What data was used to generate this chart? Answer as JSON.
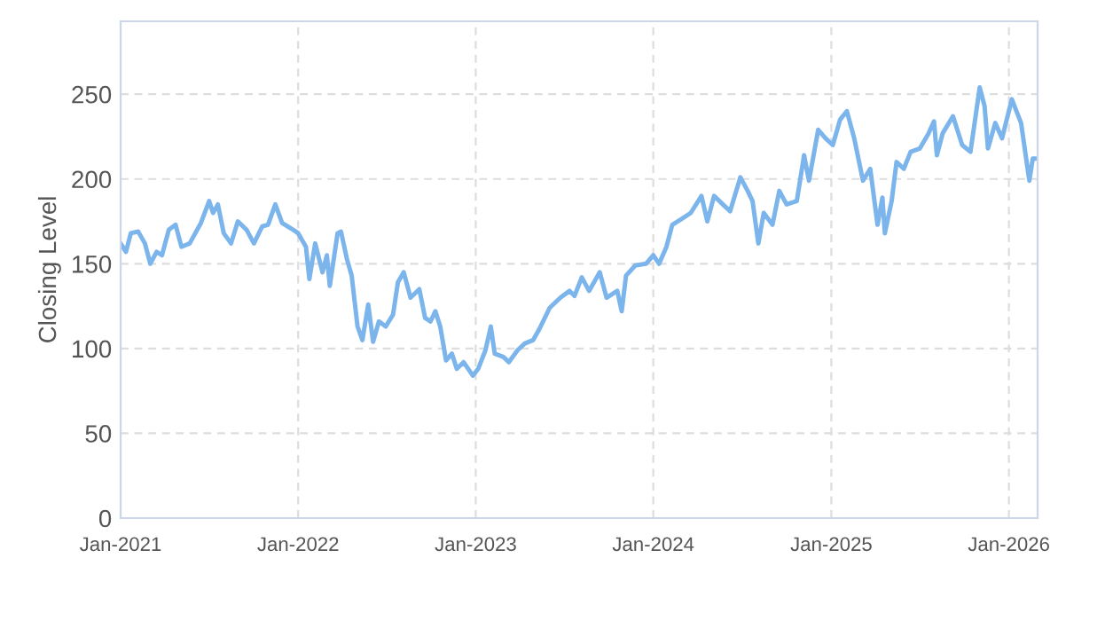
{
  "chart_data": {
    "type": "line",
    "ylabel": "Closing Level",
    "xlim": [
      "2021-01-01",
      "2026-03-01"
    ],
    "ylim": [
      0,
      293
    ],
    "xticks": [
      {
        "value": "2021-01-01",
        "label": "Jan-2021"
      },
      {
        "value": "2022-01-01",
        "label": "Jan-2022"
      },
      {
        "value": "2023-01-01",
        "label": "Jan-2023"
      },
      {
        "value": "2024-01-01",
        "label": "Jan-2024"
      },
      {
        "value": "2025-01-01",
        "label": "Jan-2025"
      },
      {
        "value": "2026-01-01",
        "label": "Jan-2026"
      }
    ],
    "yticks": [
      0,
      50,
      100,
      150,
      200,
      250
    ],
    "grid": true,
    "marker": "none",
    "line_style": "solid",
    "series": [
      {
        "color": "#7cb5ec",
        "x": [
          "2021-01-01",
          "2021-01-12",
          "2021-01-22",
          "2021-02-06",
          "2021-02-20",
          "2021-03-03",
          "2021-03-16",
          "2021-03-27",
          "2021-04-10",
          "2021-04-24",
          "2021-05-06",
          "2021-05-23",
          "2021-06-15",
          "2021-07-02",
          "2021-07-10",
          "2021-07-20",
          "2021-08-01",
          "2021-08-16",
          "2021-08-30",
          "2021-09-17",
          "2021-10-02",
          "2021-10-19",
          "2021-10-31",
          "2021-11-15",
          "2021-11-29",
          "2021-12-22",
          "2022-01-01",
          "2022-01-17",
          "2022-01-24",
          "2022-02-05",
          "2022-02-20",
          "2022-03-01",
          "2022-03-07",
          "2022-03-23",
          "2022-03-30",
          "2022-04-11",
          "2022-04-21",
          "2022-05-03",
          "2022-05-13",
          "2022-05-25",
          "2022-06-04",
          "2022-06-16",
          "2022-06-30",
          "2022-07-15",
          "2022-07-25",
          "2022-08-06",
          "2022-08-20",
          "2022-09-07",
          "2022-09-19",
          "2022-09-30",
          "2022-10-10",
          "2022-10-20",
          "2022-11-01",
          "2022-11-13",
          "2022-11-23",
          "2022-12-07",
          "2022-12-26",
          "2023-01-06",
          "2023-01-21",
          "2023-02-01",
          "2023-02-09",
          "2023-02-27",
          "2023-03-10",
          "2023-03-28",
          "2023-04-12",
          "2023-04-29",
          "2023-05-11",
          "2023-06-02",
          "2023-06-24",
          "2023-07-13",
          "2023-07-23",
          "2023-08-07",
          "2023-08-22",
          "2023-09-13",
          "2023-09-27",
          "2023-10-19",
          "2023-10-28",
          "2023-11-06",
          "2023-11-25",
          "2023-12-17",
          "2024-01-01",
          "2024-01-13",
          "2024-01-28",
          "2024-02-09",
          "2024-02-26",
          "2024-03-18",
          "2024-04-09",
          "2024-04-21",
          "2024-05-05",
          "2024-05-23",
          "2024-06-07",
          "2024-06-28",
          "2024-07-13",
          "2024-07-23",
          "2024-08-04",
          "2024-08-15",
          "2024-09-02",
          "2024-09-16",
          "2024-10-01",
          "2024-10-22",
          "2024-11-06",
          "2024-11-16",
          "2024-12-05",
          "2024-12-20",
          "2025-01-04",
          "2025-01-19",
          "2025-02-02",
          "2025-02-17",
          "2025-03-07",
          "2025-03-22",
          "2025-04-06",
          "2025-04-16",
          "2025-04-21",
          "2025-05-05",
          "2025-05-15",
          "2025-05-30",
          "2025-06-13",
          "2025-07-02",
          "2025-07-20",
          "2025-07-31",
          "2025-08-06",
          "2025-08-18",
          "2025-09-08",
          "2025-09-27",
          "2025-10-14",
          "2025-11-02",
          "2025-11-12",
          "2025-11-19",
          "2025-12-04",
          "2025-12-18",
          "2026-01-07",
          "2026-01-26",
          "2026-02-12",
          "2026-02-19",
          "2026-03-01"
        ],
        "values": [
          162,
          157,
          168,
          169,
          162,
          150,
          157,
          155,
          170,
          173,
          160,
          162,
          174,
          187,
          180,
          185,
          168,
          162,
          175,
          170,
          162,
          172,
          173,
          185,
          174,
          170,
          168,
          160,
          141,
          162,
          145,
          155,
          137,
          168,
          169,
          153,
          143,
          113,
          105,
          126,
          104,
          116,
          113,
          120,
          139,
          145,
          130,
          135,
          118,
          116,
          122,
          113,
          93,
          97,
          88,
          92,
          84,
          88,
          99,
          113,
          97,
          95,
          92,
          99,
          103,
          105,
          111,
          124,
          130,
          134,
          131,
          142,
          134,
          145,
          130,
          134,
          122,
          143,
          149,
          150,
          155,
          150,
          160,
          173,
          176,
          180,
          190,
          175,
          190,
          185,
          181,
          201,
          193,
          187,
          162,
          180,
          173,
          193,
          185,
          187,
          214,
          199,
          229,
          224,
          220,
          235,
          240,
          224,
          199,
          206,
          173,
          189,
          168,
          187,
          210,
          206,
          216,
          218,
          227,
          234,
          214,
          227,
          237,
          220,
          216,
          254,
          243,
          218,
          233,
          224,
          247,
          233,
          199,
          212,
          212
        ]
      }
    ]
  }
}
